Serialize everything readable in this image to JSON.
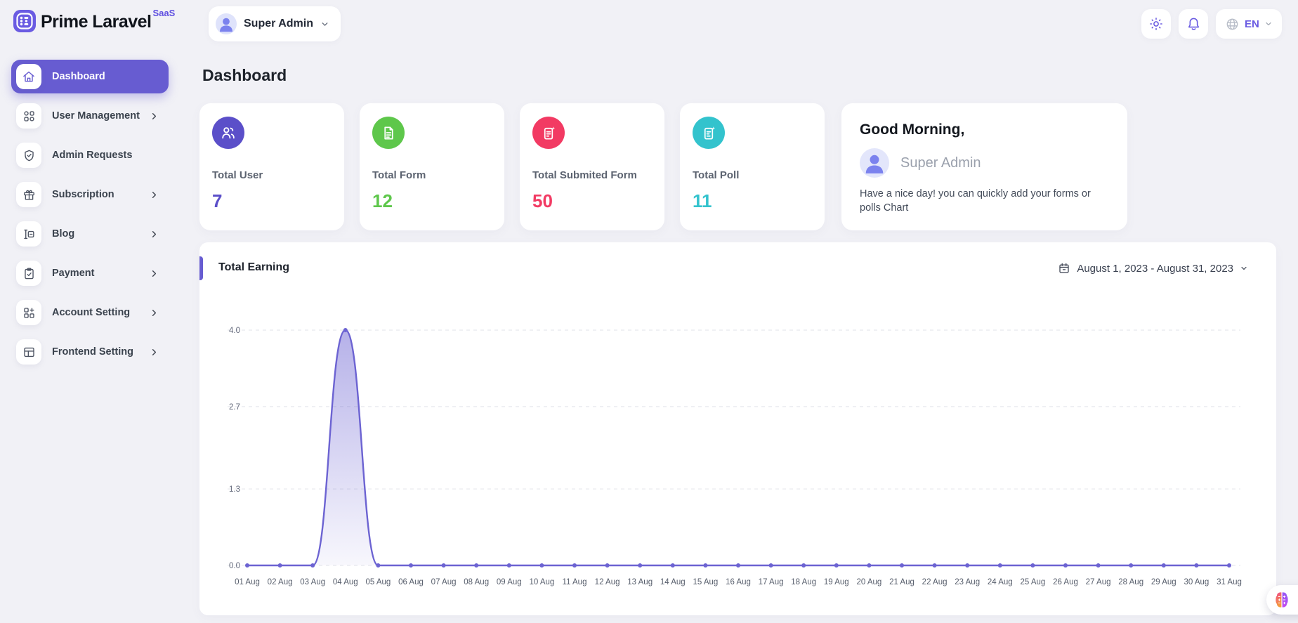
{
  "brand": {
    "name": "Prime Laravel",
    "badge": "SaaS",
    "color": "#6a5be2"
  },
  "topbar": {
    "user_name": "Super Admin",
    "language": "EN"
  },
  "page": {
    "title": "Dashboard"
  },
  "sidebar": {
    "items": [
      {
        "label": "Dashboard",
        "icon": "home-icon",
        "active": true,
        "chevron": false
      },
      {
        "label": "User Management",
        "icon": "grid-shapes-icon",
        "active": false,
        "chevron": true
      },
      {
        "label": "Admin Requests",
        "icon": "shield-check-icon",
        "active": false,
        "chevron": false
      },
      {
        "label": "Subscription",
        "icon": "gift-icon",
        "active": false,
        "chevron": true
      },
      {
        "label": "Blog",
        "icon": "blog-icon",
        "active": false,
        "chevron": true
      },
      {
        "label": "Payment",
        "icon": "clipboard-check-icon",
        "active": false,
        "chevron": true
      },
      {
        "label": "Account Setting",
        "icon": "grid-plus-icon",
        "active": false,
        "chevron": true
      },
      {
        "label": "Frontend Setting",
        "icon": "layout-table-icon",
        "active": false,
        "chevron": true
      }
    ],
    "active_color": "#675CD1"
  },
  "stats": [
    {
      "label": "Total User",
      "value": "7",
      "color": "#5b4fc9",
      "icon": "users-icon"
    },
    {
      "label": "Total Form",
      "value": "12",
      "color": "#5ec74b",
      "icon": "form-document-icon"
    },
    {
      "label": "Total Submited Form",
      "value": "50",
      "color": "#f23a63",
      "icon": "submitted-form-icon"
    },
    {
      "label": "Total Poll",
      "value": "11",
      "color": "#33c3cd",
      "icon": "poll-icon"
    }
  ],
  "greeting": {
    "title": "Good Morning,",
    "user": "Super Admin",
    "message": "Have a nice day! you can quickly add your forms or polls Chart"
  },
  "chart_card": {
    "title": "Total Earning",
    "date_range": "August 1, 2023 - August 31, 2023"
  },
  "chart_data": {
    "type": "area",
    "title": "Total Earning",
    "x": [
      "01 Aug",
      "02 Aug",
      "03 Aug",
      "04 Aug",
      "05 Aug",
      "06 Aug",
      "07 Aug",
      "08 Aug",
      "09 Aug",
      "10 Aug",
      "11 Aug",
      "12 Aug",
      "13 Aug",
      "14 Aug",
      "15 Aug",
      "16 Aug",
      "17 Aug",
      "18 Aug",
      "19 Aug",
      "20 Aug",
      "21 Aug",
      "22 Aug",
      "23 Aug",
      "24 Aug",
      "25 Aug",
      "26 Aug",
      "27 Aug",
      "28 Aug",
      "29 Aug",
      "30 Aug",
      "31 Aug"
    ],
    "values": [
      0,
      0,
      0,
      4,
      0,
      0,
      0,
      0,
      0,
      0,
      0,
      0,
      0,
      0,
      0,
      0,
      0,
      0,
      0,
      0,
      0,
      0,
      0,
      0,
      0,
      0,
      0,
      0,
      0,
      0,
      0
    ],
    "ylim": [
      0,
      4
    ],
    "yticks": [
      4.0,
      2.7,
      1.3,
      0.0
    ],
    "ytick_labels": [
      "4.0",
      "2.7",
      "1.3",
      "0.0"
    ],
    "line_color": "#6C63D2",
    "grid": true,
    "legend": false
  }
}
